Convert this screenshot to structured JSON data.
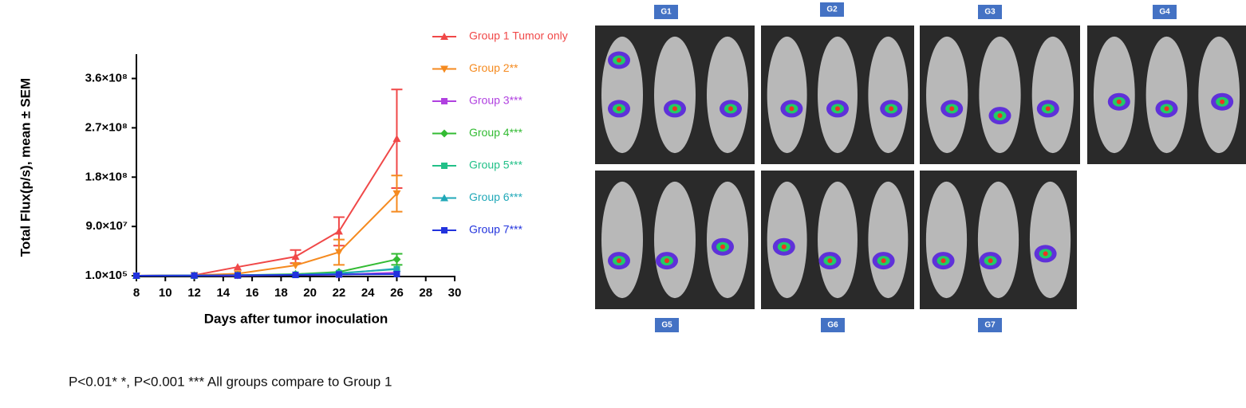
{
  "chart_data": {
    "type": "line",
    "y_label": "Total Flux(p/s), mean ± SEM",
    "x_label": "Days after tumor inoculation",
    "note": "P<0.01* *, P<0.001 *** All groups compare to Group 1",
    "x": [
      8,
      12,
      15,
      19,
      22,
      26
    ],
    "xlim": [
      8,
      30
    ],
    "xticks": [
      8,
      10,
      12,
      14,
      16,
      18,
      20,
      22,
      24,
      26,
      28,
      30
    ],
    "ylim": [
      100000,
      400000000
    ],
    "yticks": [
      {
        "value": 100000,
        "label": "1.0×10⁵"
      },
      {
        "value": 90000000,
        "label": "9.0×10⁷"
      },
      {
        "value": 180000000,
        "label": "1.8×10⁸"
      },
      {
        "value": 270000000,
        "label": "2.7×10⁸"
      },
      {
        "value": 360000000,
        "label": "3.6×10⁸"
      }
    ],
    "series": [
      {
        "name": "Group 1 Tumor only",
        "color": "#f04848",
        "marker": "triangle",
        "values": [
          100000,
          1000000,
          16000000,
          35000000,
          81000000,
          250000000
        ],
        "errors": [
          null,
          null,
          null,
          12000000,
          26000000,
          90000000
        ]
      },
      {
        "name": "Group 2**",
        "color": "#f58a1f",
        "marker": "triangle-down",
        "values": [
          100000,
          1000000,
          4000000,
          19000000,
          43000000,
          150000000
        ],
        "errors": [
          null,
          null,
          null,
          null,
          23000000,
          33000000
        ]
      },
      {
        "name": "Group 3***",
        "color": "#b040e0",
        "marker": "square",
        "values": [
          100000,
          500000,
          100000,
          1500000,
          2000000,
          6000000
        ],
        "errors": [
          null,
          null,
          null,
          null,
          null,
          null
        ]
      },
      {
        "name": "Group 4***",
        "color": "#33bb33",
        "marker": "diamond",
        "values": [
          100000,
          500000,
          1000000,
          3000000,
          7000000,
          30000000
        ],
        "errors": [
          null,
          null,
          null,
          null,
          null,
          10000000
        ]
      },
      {
        "name": "Group 5***",
        "color": "#22c088",
        "marker": "square",
        "values": [
          100000,
          500000,
          1000000,
          2000000,
          5000000,
          12000000
        ],
        "errors": [
          null,
          null,
          null,
          null,
          null,
          null
        ]
      },
      {
        "name": "Group 6***",
        "color": "#20a8b8",
        "marker": "triangle",
        "values": [
          100000,
          500000,
          1000000,
          2000000,
          4000000,
          13000000
        ],
        "errors": [
          null,
          null,
          null,
          null,
          null,
          null
        ]
      },
      {
        "name": "Group 7***",
        "color": "#2233dd",
        "marker": "square",
        "values": [
          100000,
          400000,
          800000,
          1500000,
          2500000,
          3000000
        ],
        "errors": [
          null,
          null,
          null,
          null,
          null,
          null
        ]
      }
    ]
  },
  "panel_labels": [
    "G1",
    "G2",
    "G3",
    "G4",
    "G5",
    "G6",
    "G7"
  ]
}
